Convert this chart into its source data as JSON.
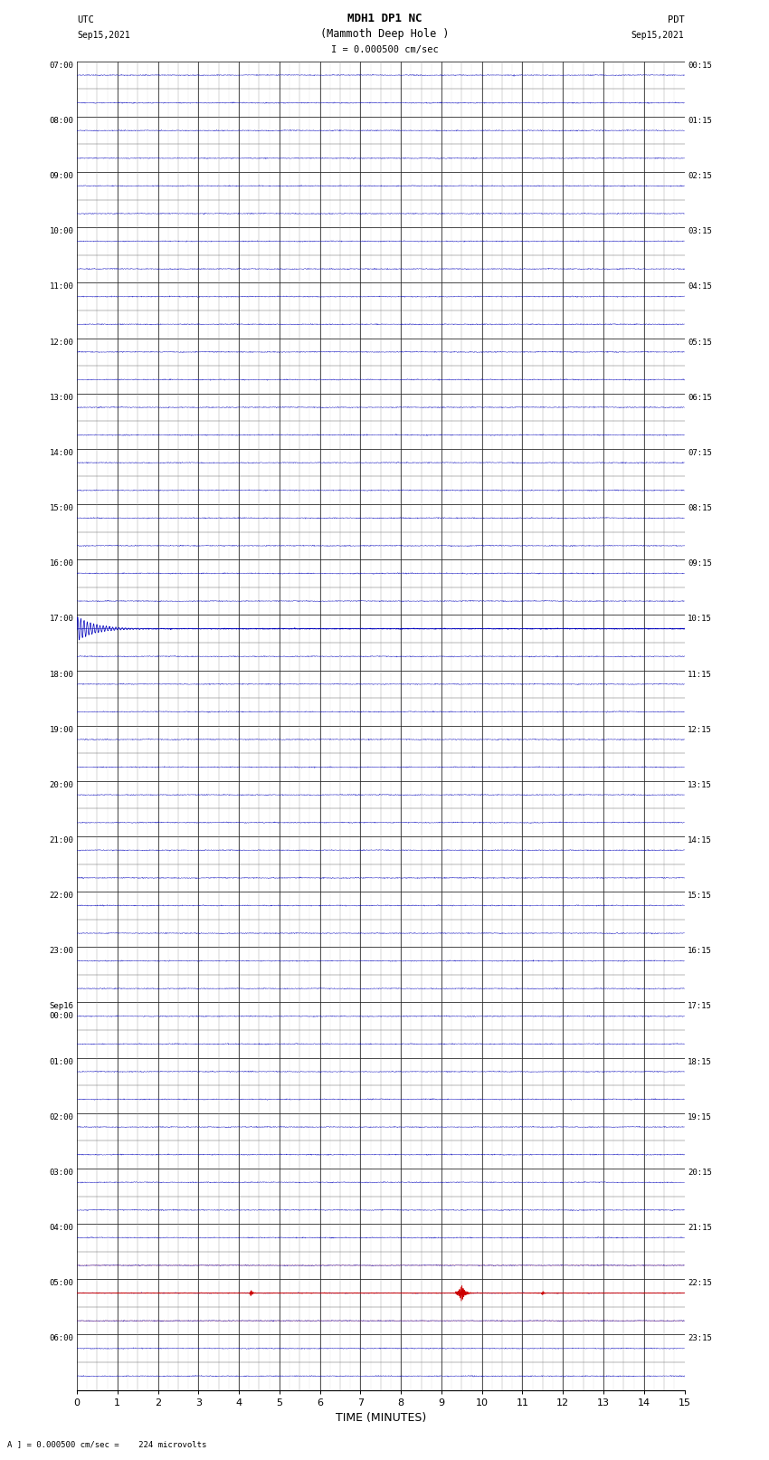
{
  "title_line1": "MDH1 DP1 NC",
  "title_line2": "(Mammoth Deep Hole )",
  "scale_text": "I = 0.000500 cm/sec",
  "bottom_label": "TIME (MINUTES)",
  "caption": "A ] = 0.000500 cm/sec =    224 microvolts",
  "left_times": [
    "07:00",
    "08:00",
    "09:00",
    "10:00",
    "11:00",
    "12:00",
    "13:00",
    "14:00",
    "15:00",
    "16:00",
    "17:00",
    "18:00",
    "19:00",
    "20:00",
    "21:00",
    "22:00",
    "23:00",
    "Sep16\n00:00",
    "01:00",
    "02:00",
    "03:00",
    "04:00",
    "05:00",
    "06:00"
  ],
  "right_times": [
    "00:15",
    "01:15",
    "02:15",
    "03:15",
    "04:15",
    "05:15",
    "06:15",
    "07:15",
    "08:15",
    "09:15",
    "10:15",
    "11:15",
    "12:15",
    "13:15",
    "14:15",
    "15:15",
    "16:15",
    "17:15",
    "18:15",
    "19:15",
    "20:15",
    "21:15",
    "22:15",
    "23:15"
  ],
  "num_rows": 24,
  "rows_per_hour": 2,
  "x_min": 0,
  "x_max": 15,
  "x_ticks": [
    0,
    1,
    2,
    3,
    4,
    5,
    6,
    7,
    8,
    9,
    10,
    11,
    12,
    13,
    14,
    15
  ],
  "background": "#ffffff",
  "trace_color_blue": "#0000bb",
  "trace_color_red": "#cc0000",
  "trace_color_black": "#000000",
  "grid_color_major": "#000000",
  "grid_color_minor": "#aaaaaa",
  "figsize": [
    8.5,
    16.13
  ],
  "event1_row": 10,
  "event1_color": "blue",
  "event2_row": 22,
  "event2_color": "red"
}
